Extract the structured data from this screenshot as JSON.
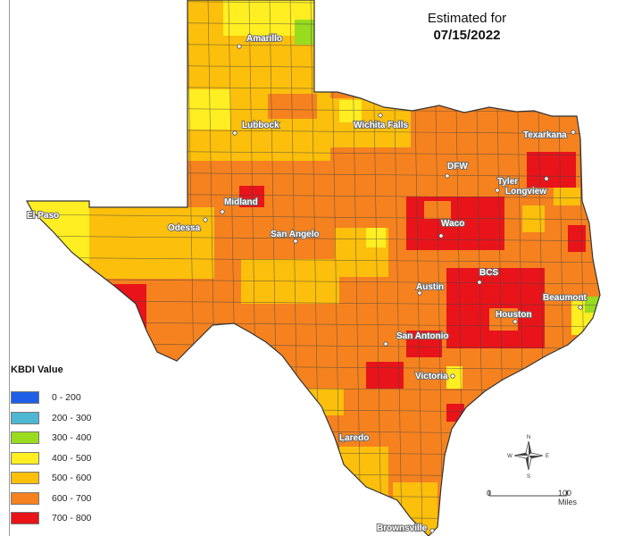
{
  "title": {
    "line1": "Estimated for",
    "line2": "07/15/2022"
  },
  "legend": {
    "title": "KBDI Value",
    "items": [
      {
        "label": "0 - 200",
        "color": "#1f5fe6"
      },
      {
        "label": "200 - 300",
        "color": "#4fb7d2"
      },
      {
        "label": "300 - 400",
        "color": "#99db1e"
      },
      {
        "label": "400 - 500",
        "color": "#ffee22"
      },
      {
        "label": "500 - 600",
        "color": "#fbbf0c"
      },
      {
        "label": "600 - 700",
        "color": "#f5821f"
      },
      {
        "label": "700 - 800",
        "color": "#e8141a"
      }
    ]
  },
  "cities": [
    "Amarillo",
    "Lubbock",
    "Wichita Falls",
    "Texarkana",
    "DFW",
    "Tyler",
    "Longview",
    "Midland",
    "Odessa",
    "El Paso",
    "San Angelo",
    "Waco",
    "BCS",
    "Austin",
    "Houston",
    "Beaumont",
    "San Antonio",
    "Victoria",
    "Laredo",
    "Brownsville"
  ],
  "scale": {
    "zero": "0",
    "max": "100 Miles"
  },
  "compass": {
    "n": "N",
    "e": "E",
    "s": "S",
    "w": "W"
  }
}
